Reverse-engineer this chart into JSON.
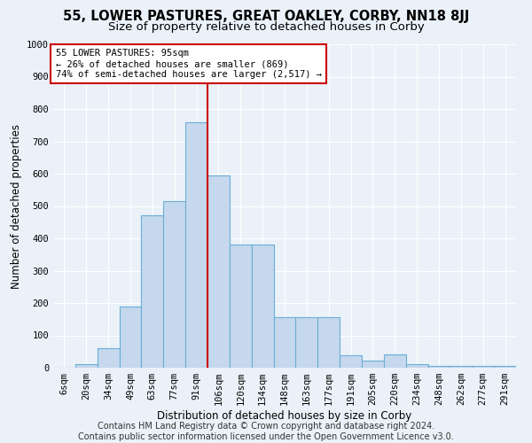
{
  "title": "55, LOWER PASTURES, GREAT OAKLEY, CORBY, NN18 8JJ",
  "subtitle": "Size of property relative to detached houses in Corby",
  "xlabel": "Distribution of detached houses by size in Corby",
  "ylabel": "Number of detached properties",
  "footer1": "Contains HM Land Registry data © Crown copyright and database right 2024.",
  "footer2": "Contains public sector information licensed under the Open Government Licence v3.0.",
  "categories": [
    "6sqm",
    "20sqm",
    "34sqm",
    "49sqm",
    "63sqm",
    "77sqm",
    "91sqm",
    "106sqm",
    "120sqm",
    "134sqm",
    "148sqm",
    "163sqm",
    "177sqm",
    "191sqm",
    "205sqm",
    "220sqm",
    "234sqm",
    "248sqm",
    "262sqm",
    "277sqm",
    "291sqm"
  ],
  "values": [
    0,
    12,
    60,
    190,
    470,
    515,
    760,
    595,
    380,
    380,
    155,
    155,
    155,
    38,
    22,
    40,
    10,
    5,
    5,
    5,
    5
  ],
  "bar_color": "#c5d8ed",
  "bar_edge_color": "#6aaed6",
  "red_line_x": 6.5,
  "annotation_title": "55 LOWER PASTURES: 95sqm",
  "annotation_line1": "← 26% of detached houses are smaller (869)",
  "annotation_line2": "74% of semi-detached houses are larger (2,517) →",
  "red_line_color": "#cc0000",
  "annotation_box_color": "#ffffff",
  "annotation_box_edge": "#cc0000",
  "ylim": [
    0,
    1000
  ],
  "yticks": [
    0,
    100,
    200,
    300,
    400,
    500,
    600,
    700,
    800,
    900,
    1000
  ],
  "bg_color": "#eaf1f8",
  "plot_bg_color": "#eaf1f8",
  "grid_color": "#ffffff",
  "title_fontsize": 10.5,
  "subtitle_fontsize": 9.5,
  "axis_label_fontsize": 8.5,
  "tick_fontsize": 7.5,
  "annot_fontsize": 7.5,
  "footer_fontsize": 7.0
}
